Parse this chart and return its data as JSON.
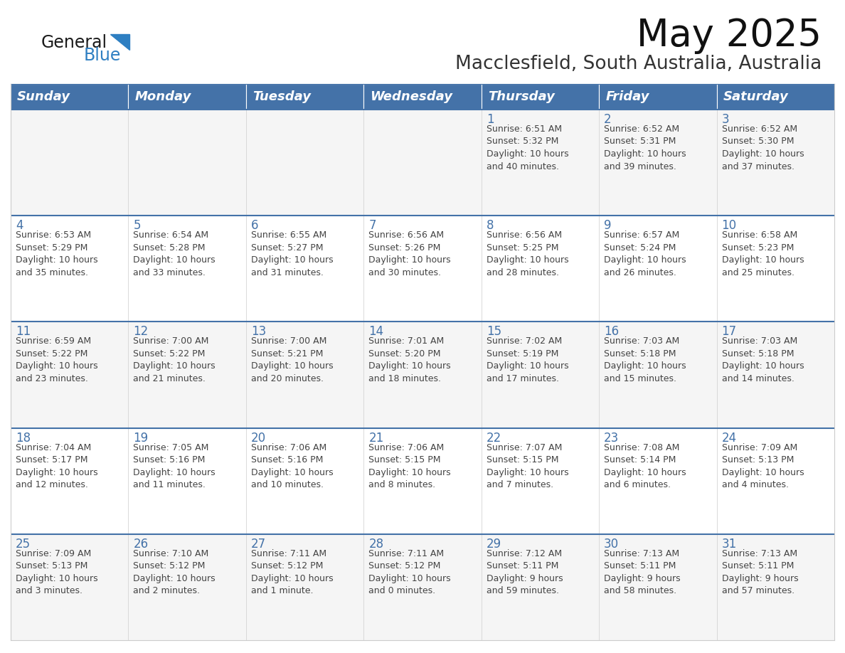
{
  "title": "May 2025",
  "subtitle": "Macclesfield, South Australia, Australia",
  "header_bg": "#4472a8",
  "header_text_color": "#ffffff",
  "cell_bg_light": "#f5f5f5",
  "cell_bg_white": "#ffffff",
  "row_separator_color": "#4472a8",
  "cell_border_color": "#cccccc",
  "day_num_color": "#4472a8",
  "cell_text_color": "#444444",
  "day_names": [
    "Sunday",
    "Monday",
    "Tuesday",
    "Wednesday",
    "Thursday",
    "Friday",
    "Saturday"
  ],
  "title_fontsize": 38,
  "subtitle_fontsize": 19,
  "header_fontsize": 13,
  "day_num_fontsize": 12,
  "cell_text_fontsize": 9,
  "logo_general_color": "#1a1a1a",
  "logo_blue_color": "#2e7fc2",
  "calendar": [
    [
      {
        "day": 0,
        "text": ""
      },
      {
        "day": 0,
        "text": ""
      },
      {
        "day": 0,
        "text": ""
      },
      {
        "day": 0,
        "text": ""
      },
      {
        "day": 1,
        "text": "Sunrise: 6:51 AM\nSunset: 5:32 PM\nDaylight: 10 hours\nand 40 minutes."
      },
      {
        "day": 2,
        "text": "Sunrise: 6:52 AM\nSunset: 5:31 PM\nDaylight: 10 hours\nand 39 minutes."
      },
      {
        "day": 3,
        "text": "Sunrise: 6:52 AM\nSunset: 5:30 PM\nDaylight: 10 hours\nand 37 minutes."
      }
    ],
    [
      {
        "day": 4,
        "text": "Sunrise: 6:53 AM\nSunset: 5:29 PM\nDaylight: 10 hours\nand 35 minutes."
      },
      {
        "day": 5,
        "text": "Sunrise: 6:54 AM\nSunset: 5:28 PM\nDaylight: 10 hours\nand 33 minutes."
      },
      {
        "day": 6,
        "text": "Sunrise: 6:55 AM\nSunset: 5:27 PM\nDaylight: 10 hours\nand 31 minutes."
      },
      {
        "day": 7,
        "text": "Sunrise: 6:56 AM\nSunset: 5:26 PM\nDaylight: 10 hours\nand 30 minutes."
      },
      {
        "day": 8,
        "text": "Sunrise: 6:56 AM\nSunset: 5:25 PM\nDaylight: 10 hours\nand 28 minutes."
      },
      {
        "day": 9,
        "text": "Sunrise: 6:57 AM\nSunset: 5:24 PM\nDaylight: 10 hours\nand 26 minutes."
      },
      {
        "day": 10,
        "text": "Sunrise: 6:58 AM\nSunset: 5:23 PM\nDaylight: 10 hours\nand 25 minutes."
      }
    ],
    [
      {
        "day": 11,
        "text": "Sunrise: 6:59 AM\nSunset: 5:22 PM\nDaylight: 10 hours\nand 23 minutes."
      },
      {
        "day": 12,
        "text": "Sunrise: 7:00 AM\nSunset: 5:22 PM\nDaylight: 10 hours\nand 21 minutes."
      },
      {
        "day": 13,
        "text": "Sunrise: 7:00 AM\nSunset: 5:21 PM\nDaylight: 10 hours\nand 20 minutes."
      },
      {
        "day": 14,
        "text": "Sunrise: 7:01 AM\nSunset: 5:20 PM\nDaylight: 10 hours\nand 18 minutes."
      },
      {
        "day": 15,
        "text": "Sunrise: 7:02 AM\nSunset: 5:19 PM\nDaylight: 10 hours\nand 17 minutes."
      },
      {
        "day": 16,
        "text": "Sunrise: 7:03 AM\nSunset: 5:18 PM\nDaylight: 10 hours\nand 15 minutes."
      },
      {
        "day": 17,
        "text": "Sunrise: 7:03 AM\nSunset: 5:18 PM\nDaylight: 10 hours\nand 14 minutes."
      }
    ],
    [
      {
        "day": 18,
        "text": "Sunrise: 7:04 AM\nSunset: 5:17 PM\nDaylight: 10 hours\nand 12 minutes."
      },
      {
        "day": 19,
        "text": "Sunrise: 7:05 AM\nSunset: 5:16 PM\nDaylight: 10 hours\nand 11 minutes."
      },
      {
        "day": 20,
        "text": "Sunrise: 7:06 AM\nSunset: 5:16 PM\nDaylight: 10 hours\nand 10 minutes."
      },
      {
        "day": 21,
        "text": "Sunrise: 7:06 AM\nSunset: 5:15 PM\nDaylight: 10 hours\nand 8 minutes."
      },
      {
        "day": 22,
        "text": "Sunrise: 7:07 AM\nSunset: 5:15 PM\nDaylight: 10 hours\nand 7 minutes."
      },
      {
        "day": 23,
        "text": "Sunrise: 7:08 AM\nSunset: 5:14 PM\nDaylight: 10 hours\nand 6 minutes."
      },
      {
        "day": 24,
        "text": "Sunrise: 7:09 AM\nSunset: 5:13 PM\nDaylight: 10 hours\nand 4 minutes."
      }
    ],
    [
      {
        "day": 25,
        "text": "Sunrise: 7:09 AM\nSunset: 5:13 PM\nDaylight: 10 hours\nand 3 minutes."
      },
      {
        "day": 26,
        "text": "Sunrise: 7:10 AM\nSunset: 5:12 PM\nDaylight: 10 hours\nand 2 minutes."
      },
      {
        "day": 27,
        "text": "Sunrise: 7:11 AM\nSunset: 5:12 PM\nDaylight: 10 hours\nand 1 minute."
      },
      {
        "day": 28,
        "text": "Sunrise: 7:11 AM\nSunset: 5:12 PM\nDaylight: 10 hours\nand 0 minutes."
      },
      {
        "day": 29,
        "text": "Sunrise: 7:12 AM\nSunset: 5:11 PM\nDaylight: 9 hours\nand 59 minutes."
      },
      {
        "day": 30,
        "text": "Sunrise: 7:13 AM\nSunset: 5:11 PM\nDaylight: 9 hours\nand 58 minutes."
      },
      {
        "day": 31,
        "text": "Sunrise: 7:13 AM\nSunset: 5:11 PM\nDaylight: 9 hours\nand 57 minutes."
      }
    ]
  ]
}
